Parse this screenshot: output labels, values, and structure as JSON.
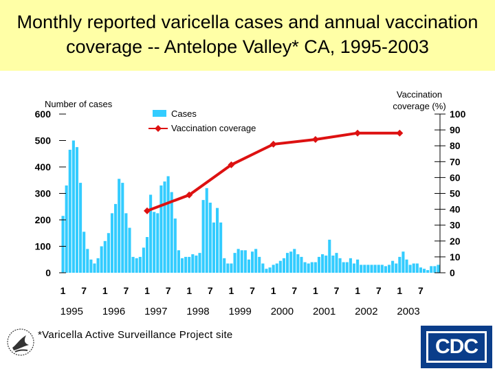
{
  "slide": {
    "title_line1": "Monthly reported varicella cases and annual vaccination",
    "title_line2": "coverage -- Antelope Valley* CA, 1995-2003",
    "footnote": "*Varicella Active Surveillance Project site",
    "logo_text": "CDC"
  },
  "chart_data": {
    "type": "bar+line",
    "title": "Monthly reported varicella cases and annual vaccination coverage -- Antelope Valley* CA, 1995-2003",
    "left_axis_label": "Number of cases",
    "right_axis_label_line1": "Vaccination",
    "right_axis_label_line2": "coverage (%)",
    "left_ylim": [
      0,
      600
    ],
    "left_ticks": [
      "0",
      "100",
      "200",
      "300",
      "400",
      "500",
      "600"
    ],
    "right_ylim": [
      0,
      100
    ],
    "right_ticks": [
      "0",
      "10",
      "20",
      "30",
      "40",
      "50",
      "60",
      "70",
      "80",
      "90",
      "100"
    ],
    "month_ticks": [
      "1",
      "7",
      "1",
      "7",
      "1",
      "7",
      "1",
      "7",
      "1",
      "7",
      "1",
      "7",
      "1",
      "7",
      "1",
      "7",
      "1",
      "7"
    ],
    "years": [
      "1995",
      "1996",
      "1997",
      "1998",
      "1999",
      "2000",
      "2001",
      "2002",
      "2003"
    ],
    "legend": {
      "bar_label": "Cases",
      "line_label": "Vaccination coverage"
    },
    "colors": {
      "bars": "#33ccff",
      "line": "#dd1111",
      "axis": "#000000"
    },
    "series": [
      {
        "name": "Cases",
        "kind": "bar",
        "values": [
          215,
          330,
          465,
          500,
          475,
          340,
          155,
          90,
          50,
          35,
          55,
          100,
          120,
          150,
          225,
          260,
          355,
          340,
          225,
          170,
          60,
          55,
          60,
          95,
          135,
          295,
          230,
          225,
          330,
          345,
          365,
          305,
          205,
          85,
          55,
          60,
          60,
          70,
          65,
          75,
          275,
          320,
          265,
          190,
          245,
          190,
          55,
          35,
          35,
          75,
          90,
          85,
          85,
          50,
          80,
          90,
          60,
          35,
          15,
          20,
          30,
          35,
          45,
          55,
          75,
          80,
          90,
          70,
          60,
          40,
          35,
          40,
          40,
          60,
          70,
          65,
          125,
          65,
          75,
          55,
          40,
          40,
          55,
          35,
          50,
          30,
          30,
          30,
          30,
          30,
          30,
          30,
          25,
          30,
          45,
          35,
          60,
          80,
          50,
          30,
          35,
          35,
          20,
          15,
          10,
          25,
          25,
          30
        ]
      },
      {
        "name": "Vaccination coverage",
        "kind": "line",
        "points": [
          {
            "year": "1997",
            "month": 1,
            "value": 39
          },
          {
            "year": "1998",
            "month": 1,
            "value": 49
          },
          {
            "year": "1999",
            "month": 1,
            "value": 68
          },
          {
            "year": "2000",
            "month": 1,
            "value": 81
          },
          {
            "year": "2001",
            "month": 1,
            "value": 84
          },
          {
            "year": "2002",
            "month": 1,
            "value": 88
          },
          {
            "year": "2003",
            "month": 1,
            "value": 88
          }
        ]
      }
    ]
  }
}
